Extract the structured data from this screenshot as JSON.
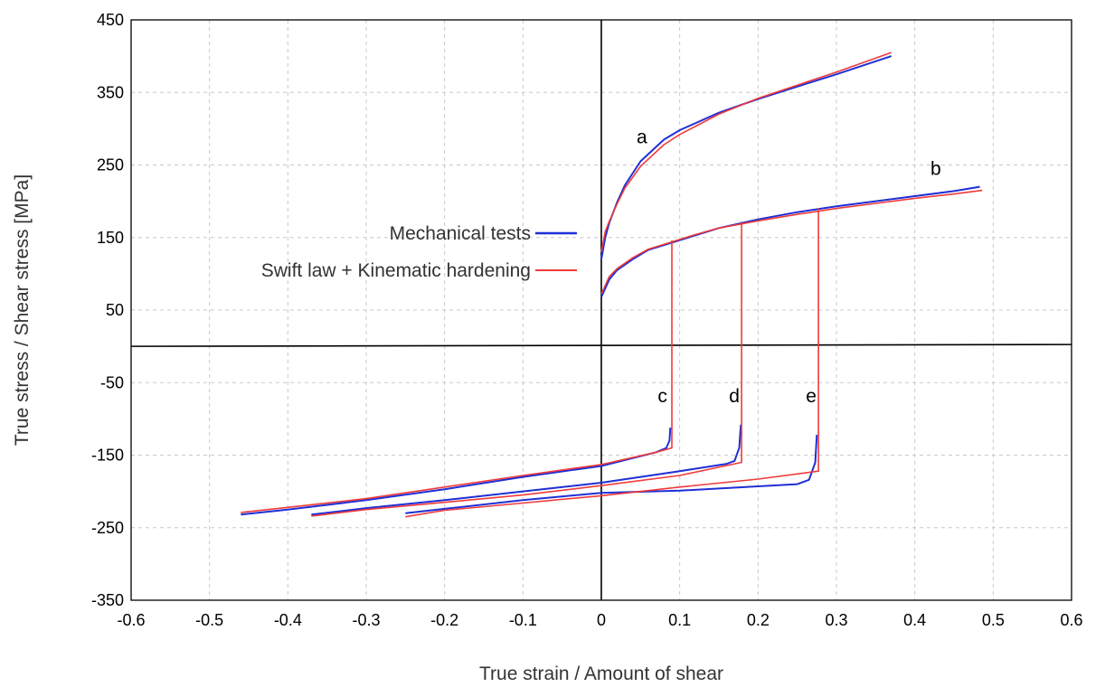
{
  "chart_data": {
    "type": "line",
    "title": "",
    "xlabel": "True strain / Amount of shear",
    "ylabel": "True stress / Shear stress [MPa]",
    "xlim": [
      -0.6,
      0.6
    ],
    "ylim": [
      -350,
      450
    ],
    "xticks": [
      -0.6,
      -0.5,
      -0.4,
      -0.3,
      -0.2,
      -0.1,
      0,
      0.1,
      0.2,
      0.3,
      0.4,
      0.5,
      0.6
    ],
    "yticks": [
      -350,
      -250,
      -150,
      -50,
      50,
      150,
      250,
      350,
      450
    ],
    "x_tick_labels": [
      "-0.6",
      "-0.5",
      "-0.4",
      "-0.3",
      "-0.2",
      "-0.1",
      "0",
      "0.1",
      "0.2",
      "0.3",
      "0.4",
      "0.5",
      "0.6"
    ],
    "y_tick_labels": [
      "-350",
      "-250",
      "-150",
      "-50",
      "50",
      "150",
      "250",
      "350",
      "450"
    ],
    "grid": true,
    "legend_position": "left",
    "legend": [
      {
        "label": "Mechanical tests",
        "color": "#1f2fd6"
      },
      {
        "label": "Swift law + Kinematic hardening",
        "color": "#f03a3a"
      }
    ],
    "annotations": [
      {
        "text": "a",
        "x": 0.045,
        "y": 280
      },
      {
        "text": "b",
        "x": 0.42,
        "y": 236
      },
      {
        "text": "c",
        "x": 0.072,
        "y": -77
      },
      {
        "text": "d",
        "x": 0.163,
        "y": -77
      },
      {
        "text": "e",
        "x": 0.261,
        "y": -77
      }
    ],
    "series": [
      {
        "name": "Mechanical tests",
        "color": "#1f2fd6",
        "points": [
          [
            0.0,
            120
          ],
          [
            0.005,
            150
          ],
          [
            0.01,
            170
          ],
          [
            0.02,
            198
          ],
          [
            0.03,
            222
          ],
          [
            0.05,
            255
          ],
          [
            0.08,
            285
          ],
          [
            0.1,
            298
          ],
          [
            0.15,
            322
          ],
          [
            0.2,
            341
          ],
          [
            0.25,
            358
          ],
          [
            0.3,
            375
          ],
          [
            0.37,
            400
          ]
        ]
      },
      {
        "name": "Swift law + Kinematic hardening",
        "color": "#f03a3a",
        "points": [
          [
            0.0,
            130
          ],
          [
            0.005,
            158
          ],
          [
            0.01,
            172
          ],
          [
            0.02,
            196
          ],
          [
            0.03,
            218
          ],
          [
            0.05,
            248
          ],
          [
            0.08,
            278
          ],
          [
            0.1,
            292
          ],
          [
            0.15,
            320
          ],
          [
            0.2,
            342
          ],
          [
            0.25,
            360
          ],
          [
            0.3,
            378
          ],
          [
            0.37,
            405
          ]
        ]
      },
      {
        "name": "Mechanical tests",
        "color": "#1f2fd6",
        "points": [
          [
            0.0,
            68
          ],
          [
            0.01,
            92
          ],
          [
            0.02,
            105
          ],
          [
            0.04,
            120
          ],
          [
            0.06,
            133
          ],
          [
            0.09,
            143
          ],
          [
            0.12,
            153
          ],
          [
            0.15,
            163
          ],
          [
            0.2,
            175
          ],
          [
            0.25,
            185
          ],
          [
            0.3,
            193
          ],
          [
            0.35,
            200
          ],
          [
            0.4,
            207
          ],
          [
            0.45,
            214
          ],
          [
            0.483,
            220
          ]
        ]
      },
      {
        "name": "Swift law + Kinematic hardening",
        "color": "#f03a3a",
        "points": [
          [
            0.0,
            72
          ],
          [
            0.01,
            96
          ],
          [
            0.02,
            107
          ],
          [
            0.04,
            122
          ],
          [
            0.06,
            134
          ],
          [
            0.09,
            144
          ],
          [
            0.12,
            154
          ],
          [
            0.15,
            163
          ],
          [
            0.2,
            173
          ],
          [
            0.25,
            182
          ],
          [
            0.3,
            190
          ],
          [
            0.35,
            197
          ],
          [
            0.4,
            204
          ],
          [
            0.45,
            210
          ],
          [
            0.486,
            215
          ]
        ]
      },
      {
        "name": "Mechanical tests",
        "color": "#1f2fd6",
        "points": [
          [
            0.088,
            -112
          ],
          [
            0.087,
            -130
          ],
          [
            0.083,
            -140
          ],
          [
            0.07,
            -146
          ],
          [
            0.0,
            -165
          ],
          [
            -0.1,
            -180
          ],
          [
            -0.2,
            -197
          ],
          [
            -0.3,
            -212
          ],
          [
            -0.4,
            -225
          ],
          [
            -0.46,
            -232
          ]
        ]
      },
      {
        "name": "Swift law + Kinematic hardening",
        "color": "#f03a3a",
        "points": [
          [
            0.09,
            146
          ],
          [
            0.09,
            -140
          ],
          [
            0.07,
            -146
          ],
          [
            0.0,
            -163
          ],
          [
            -0.1,
            -178
          ],
          [
            -0.2,
            -194
          ],
          [
            -0.3,
            -210
          ],
          [
            -0.4,
            -222
          ],
          [
            -0.46,
            -229
          ]
        ]
      },
      {
        "name": "Mechanical tests",
        "color": "#1f2fd6",
        "points": [
          [
            0.178,
            -108
          ],
          [
            0.176,
            -140
          ],
          [
            0.17,
            -158
          ],
          [
            0.16,
            -162
          ],
          [
            0.1,
            -172
          ],
          [
            0.0,
            -188
          ],
          [
            -0.1,
            -200
          ],
          [
            -0.2,
            -212
          ],
          [
            -0.3,
            -223
          ],
          [
            -0.37,
            -232
          ]
        ]
      },
      {
        "name": "Swift law + Kinematic hardening",
        "color": "#f03a3a",
        "points": [
          [
            0.179,
            172
          ],
          [
            0.179,
            -160
          ],
          [
            0.1,
            -178
          ],
          [
            0.0,
            -192
          ],
          [
            -0.1,
            -205
          ],
          [
            -0.2,
            -215
          ],
          [
            -0.3,
            -225
          ],
          [
            -0.37,
            -234
          ]
        ]
      },
      {
        "name": "Mechanical tests",
        "color": "#1f2fd6",
        "points": [
          [
            0.275,
            -122
          ],
          [
            0.273,
            -160
          ],
          [
            0.265,
            -184
          ],
          [
            0.25,
            -190
          ],
          [
            0.2,
            -193
          ],
          [
            0.1,
            -199
          ],
          [
            0.0,
            -202
          ],
          [
            -0.1,
            -212
          ],
          [
            -0.2,
            -224
          ],
          [
            -0.25,
            -230
          ]
        ]
      },
      {
        "name": "Swift law + Kinematic hardening",
        "color": "#f03a3a",
        "points": [
          [
            0.277,
            190
          ],
          [
            0.277,
            -172
          ],
          [
            0.2,
            -183
          ],
          [
            0.1,
            -194
          ],
          [
            0.0,
            -206
          ],
          [
            -0.1,
            -216
          ],
          [
            -0.2,
            -226
          ],
          [
            -0.25,
            -235
          ]
        ]
      }
    ]
  }
}
